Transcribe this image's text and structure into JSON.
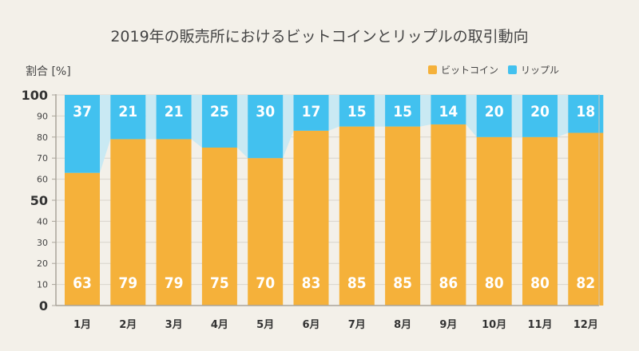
{
  "chart_data": {
    "type": "bar",
    "stacked": true,
    "title": "2019年の販売所におけるビットコインとリップルの取引動向",
    "ylabel": "割合 [%]",
    "xlabel": "",
    "ylim": [
      0,
      100
    ],
    "yticks": [
      0,
      10,
      20,
      30,
      40,
      50,
      60,
      70,
      80,
      90,
      100
    ],
    "major_yticks": [
      0,
      50,
      100
    ],
    "legend_position": "top-right",
    "categories": [
      "1月",
      "2月",
      "3月",
      "4月",
      "5月",
      "6月",
      "7月",
      "8月",
      "9月",
      "10月",
      "11月",
      "12月"
    ],
    "series": [
      {
        "name": "ビットコイン",
        "color": "#f5b13a",
        "values": [
          63,
          79,
          79,
          75,
          70,
          83,
          85,
          85,
          86,
          80,
          80,
          82
        ]
      },
      {
        "name": "リップル",
        "color": "#42c1ef",
        "values": [
          37,
          21,
          21,
          25,
          30,
          17,
          15,
          15,
          14,
          20,
          20,
          18
        ]
      }
    ],
    "connector_color": "#c9e9f3",
    "gridline_color": "#d8d4cc"
  }
}
